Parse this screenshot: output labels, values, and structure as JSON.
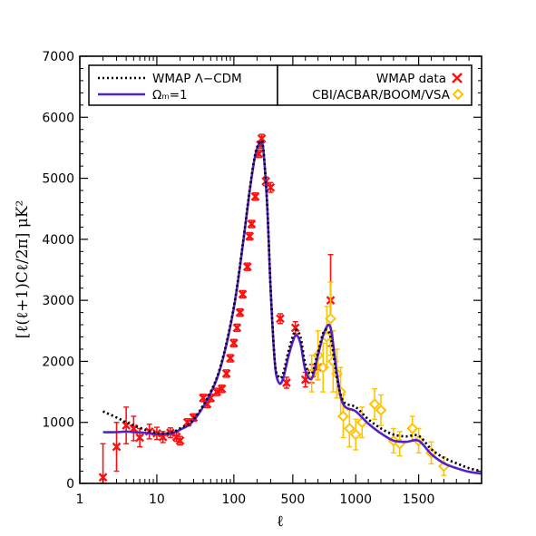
{
  "chart_data": {
    "type": "line",
    "xlabel": "ℓ",
    "ylabel": "[ℓ(ℓ+1)Cℓ/2π]  μK²",
    "x_scale": "hybrid: log for ℓ<400, linear for ℓ≥400",
    "ylim": [
      0,
      7000
    ],
    "xlim": [
      1,
      2000
    ],
    "x_ticks": [
      1,
      10,
      100,
      500,
      1000,
      1500
    ],
    "x_tick_labels": [
      "1",
      "10",
      "100",
      "500",
      "1000",
      "1500"
    ],
    "y_ticks": [
      0,
      1000,
      2000,
      3000,
      4000,
      5000,
      6000,
      7000
    ],
    "y_tick_labels": [
      "0",
      "1000",
      "2000",
      "3000",
      "4000",
      "5000",
      "6000",
      "7000"
    ],
    "grid": false,
    "legend": {
      "left": [
        {
          "label": "WMAP Λ−CDM",
          "style": "dotted",
          "color": "#000000"
        },
        {
          "label": "Ωₘ=1",
          "style": "solid",
          "color": "#5520c8"
        }
      ],
      "right": [
        {
          "label": "WMAP data",
          "marker": "x",
          "color": "#ff1010"
        },
        {
          "label": "CBI/ACBAR/BOOM/VSA",
          "marker": "diamond",
          "color": "#ffc400"
        }
      ]
    },
    "series": [
      {
        "name": "WMAP Λ−CDM",
        "style": "dotted",
        "color": "#000000",
        "x": [
          2,
          3,
          4,
          5,
          7,
          10,
          15,
          20,
          30,
          50,
          70,
          100,
          130,
          160,
          190,
          220,
          240,
          270,
          300,
          340,
          380,
          420,
          470,
          520,
          560,
          600,
          650,
          700,
          750,
          800,
          850,
          900,
          1000,
          1100,
          1200,
          1300,
          1400,
          1500,
          1600,
          1700,
          1800,
          1900,
          2000
        ],
        "y": [
          1180,
          1080,
          1000,
          950,
          880,
          820,
          830,
          900,
          1050,
          1500,
          2000,
          2900,
          3900,
          4800,
          5400,
          5600,
          5500,
          4600,
          3200,
          2000,
          1750,
          1780,
          2200,
          2500,
          2400,
          1950,
          1800,
          2150,
          2500,
          2400,
          1750,
          1350,
          1250,
          1050,
          900,
          800,
          770,
          780,
          560,
          420,
          330,
          250,
          200
        ]
      },
      {
        "name": "Ωₘ=1",
        "style": "solid",
        "color": "#5520c8",
        "x": [
          2,
          3,
          4,
          5,
          7,
          10,
          15,
          20,
          30,
          50,
          70,
          100,
          130,
          160,
          190,
          220,
          240,
          270,
          300,
          340,
          380,
          420,
          470,
          520,
          560,
          600,
          650,
          700,
          750,
          800,
          850,
          900,
          1000,
          1100,
          1200,
          1300,
          1400,
          1500,
          1600,
          1700,
          1800,
          1900,
          2000
        ],
        "y": [
          840,
          840,
          850,
          840,
          830,
          810,
          820,
          880,
          1030,
          1480,
          1980,
          2880,
          3880,
          4780,
          5380,
          5580,
          5480,
          4580,
          3180,
          1980,
          1660,
          1700,
          2120,
          2420,
          2300,
          1850,
          1720,
          2100,
          2480,
          2550,
          1800,
          1300,
          1180,
          980,
          820,
          700,
          680,
          700,
          480,
          330,
          250,
          190,
          160
        ]
      },
      {
        "name": "WMAP data",
        "marker": "x",
        "color": "#ff1010",
        "x": [
          2,
          3,
          4,
          5,
          6,
          8,
          10,
          12,
          15,
          18,
          20,
          25,
          30,
          40,
          45,
          50,
          60,
          70,
          80,
          90,
          100,
          110,
          120,
          130,
          150,
          160,
          170,
          190,
          210,
          220,
          230,
          260,
          300,
          400,
          450,
          520,
          600,
          650,
          700,
          800
        ],
        "y": [
          100,
          600,
          950,
          900,
          750,
          850,
          820,
          760,
          830,
          760,
          700,
          1000,
          1080,
          1400,
          1300,
          1400,
          1500,
          1550,
          1800,
          2050,
          2300,
          2550,
          2800,
          3100,
          3550,
          4050,
          4250,
          4700,
          5400,
          5550,
          5650,
          4950,
          4850,
          2700,
          1650,
          2550,
          1700,
          1800,
          1900,
          3000
        ],
        "yerr": [
          550,
          400,
          300,
          200,
          150,
          120,
          100,
          90,
          80,
          70,
          70,
          60,
          60,
          60,
          60,
          60,
          60,
          60,
          60,
          60,
          60,
          60,
          60,
          60,
          60,
          60,
          60,
          60,
          60,
          60,
          70,
          70,
          80,
          80,
          90,
          100,
          120,
          150,
          200,
          750
        ]
      },
      {
        "name": "CBI/ACBAR/BOOM/VSA",
        "marker": "diamond",
        "color": "#ffc400",
        "x": [
          650,
          700,
          740,
          770,
          800,
          820,
          850,
          880,
          900,
          950,
          1000,
          1050,
          1150,
          1200,
          1300,
          1350,
          1450,
          1500,
          1600,
          1700
        ],
        "y": [
          1800,
          2100,
          1900,
          2400,
          2700,
          2000,
          1800,
          1500,
          1100,
          900,
          800,
          1000,
          1300,
          1200,
          700,
          650,
          900,
          700,
          500,
          280
        ],
        "yerr": [
          300,
          400,
          400,
          500,
          600,
          500,
          400,
          400,
          350,
          300,
          250,
          250,
          250,
          250,
          200,
          200,
          200,
          200,
          180,
          150
        ]
      }
    ]
  }
}
